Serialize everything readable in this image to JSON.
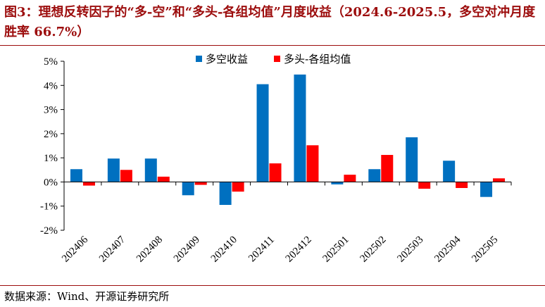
{
  "title": "图3：理想反转因子的“多-空”和“多头-各组均值”月度收益（2024.6-2025.5，多空对冲月度胜率 66.7%）",
  "source": "数据来源：Wind、开源证券研究所",
  "colors": {
    "series_long_short": "#0070c0",
    "series_long_mean": "#ff0000",
    "accent": "#9c0c0c"
  },
  "chart_data": {
    "type": "bar",
    "title": "",
    "xlabel": "",
    "ylabel": "",
    "categories": [
      "202406",
      "202407",
      "202408",
      "202409",
      "202410",
      "202411",
      "202412",
      "202501",
      "202502",
      "202503",
      "202504",
      "202505"
    ],
    "series": [
      {
        "name": "多空收益",
        "values": [
          0.53,
          0.97,
          0.97,
          -0.55,
          -0.95,
          4.05,
          4.45,
          -0.1,
          0.53,
          1.85,
          0.88,
          -0.62
        ]
      },
      {
        "name": "多头-各组均值",
        "values": [
          -0.15,
          0.5,
          0.22,
          -0.12,
          -0.4,
          0.77,
          1.52,
          0.3,
          1.12,
          -0.28,
          -0.25,
          0.15
        ]
      }
    ],
    "ylim": [
      -2,
      5
    ],
    "yticks": [
      -2,
      -1,
      0,
      1,
      2,
      3,
      4,
      5
    ],
    "ytick_labels": [
      "-2%",
      "-1%",
      "0%",
      "1%",
      "2%",
      "3%",
      "4%",
      "5%"
    ],
    "legend": "top-center",
    "grid": false
  }
}
